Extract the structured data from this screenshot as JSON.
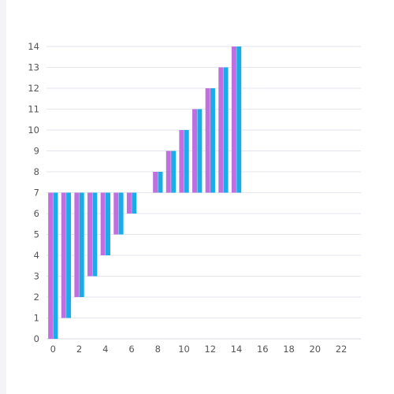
{
  "colors": {
    "series_a": "#c06ee0",
    "series_b": "#1aace8",
    "grid": "#e3e6ef",
    "tick_text": "#555555"
  },
  "chart_data": {
    "type": "bar",
    "baseline": 7,
    "x": [
      0,
      1,
      2,
      3,
      4,
      5,
      6,
      8,
      9,
      10,
      11,
      12,
      13,
      14
    ],
    "series": [
      {
        "values": [
          0,
          1,
          2,
          3,
          4,
          5,
          6,
          8,
          9,
          10,
          11,
          12,
          13,
          14
        ]
      },
      {
        "values": [
          0,
          1,
          2,
          3,
          4,
          5,
          6,
          8,
          9,
          10,
          11,
          12,
          13,
          14
        ]
      }
    ],
    "xlim": [
      -0.5,
      23.5
    ],
    "ylim": [
      0,
      14
    ],
    "x_ticks": [
      "0",
      "2",
      "4",
      "6",
      "8",
      "10",
      "12",
      "14",
      "16",
      "18",
      "20",
      "22"
    ],
    "y_ticks": [
      "0",
      "1",
      "2",
      "3",
      "4",
      "5",
      "6",
      "7",
      "8",
      "9",
      "10",
      "11",
      "12",
      "13",
      "14"
    ],
    "xlabel": "",
    "ylabel": "",
    "title": "",
    "grid": "horizontal"
  }
}
